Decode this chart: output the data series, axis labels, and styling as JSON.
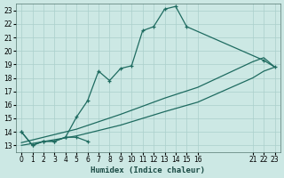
{
  "bg_color": "#cce8e4",
  "grid_color": "#aacfcb",
  "line_color": "#1e6b60",
  "xlabel": "Humidex (Indice chaleur)",
  "ylim": [
    12.5,
    23.5
  ],
  "xlim": [
    -0.5,
    23.5
  ],
  "yticks": [
    13,
    14,
    15,
    16,
    17,
    18,
    19,
    20,
    21,
    22,
    23
  ],
  "xtick_positions": [
    0,
    1,
    2,
    3,
    4,
    5,
    6,
    7,
    8,
    9,
    10,
    11,
    12,
    13,
    14,
    15,
    16,
    21,
    22,
    23
  ],
  "xtick_labels": [
    "0",
    "1",
    "2",
    "3",
    "4",
    "5",
    "6",
    "7",
    "8",
    "9",
    "10",
    "11",
    "12",
    "13",
    "14",
    "15",
    "16",
    "21",
    "22",
    "23"
  ],
  "line1_x": [
    0,
    1,
    2,
    3,
    4,
    5,
    6,
    7,
    8,
    9,
    10,
    11,
    12,
    13,
    14,
    15,
    22,
    23
  ],
  "line1_y": [
    14.0,
    13.0,
    13.3,
    13.3,
    13.6,
    15.1,
    16.3,
    18.5,
    17.8,
    18.7,
    18.9,
    21.5,
    21.8,
    23.1,
    23.3,
    21.8,
    19.3,
    18.8
  ],
  "line2_x": [
    0,
    1,
    2,
    3,
    4,
    5,
    6
  ],
  "line2_y": [
    14.0,
    13.0,
    13.3,
    13.3,
    13.6,
    13.6,
    13.3
  ],
  "line3_x": [
    0,
    5,
    9,
    13,
    16,
    21,
    22,
    23
  ],
  "line3_y": [
    13.2,
    14.2,
    15.3,
    16.5,
    17.3,
    19.2,
    19.5,
    18.8
  ],
  "line4_x": [
    0,
    5,
    9,
    13,
    16,
    21,
    22,
    23
  ],
  "line4_y": [
    13.0,
    13.7,
    14.5,
    15.5,
    16.2,
    18.0,
    18.5,
    18.8
  ]
}
